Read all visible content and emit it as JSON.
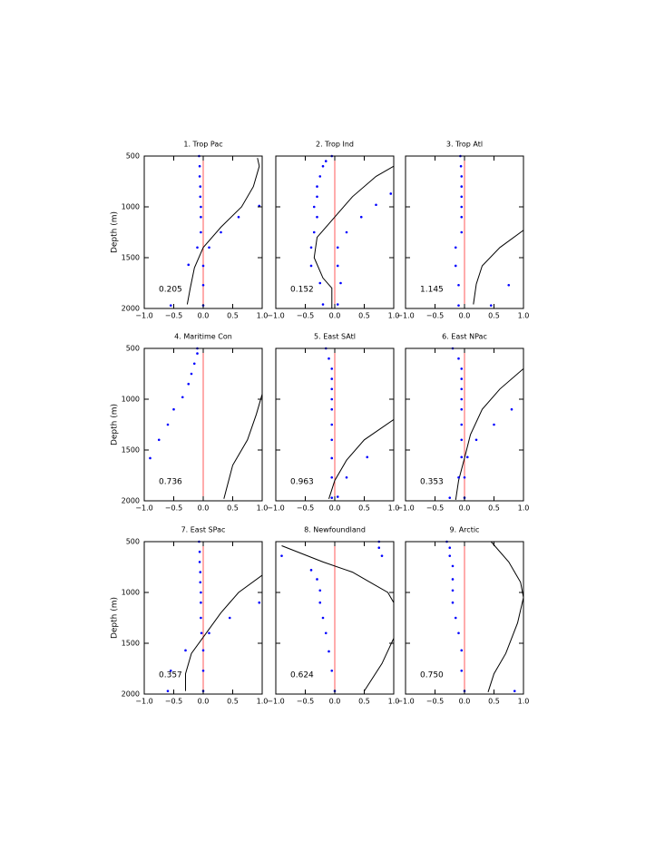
{
  "chart_data": [
    {
      "type": "profile",
      "title": "1. Trop Pac",
      "annotation": "0.205",
      "ylabel": "Depth (m)",
      "show_ytick_labels": true,
      "xlim": [
        -1,
        1
      ],
      "ylim": [
        500,
        2000
      ],
      "y_inverted": true,
      "xticks": [
        {
          "value": -1,
          "label": "−1.0"
        },
        {
          "value": -0.5,
          "label": "−0.5"
        },
        {
          "value": 0,
          "label": "0.0"
        },
        0.5,
        {
          "value": 1,
          "label": "1.0"
        }
      ],
      "yticks": [
        500,
        1000,
        1500,
        2000
      ],
      "reference_x": 0,
      "reference_color": "#ff5a5a",
      "series": [
        {
          "kind": "line",
          "color": "#000000",
          "x": [
            0.92,
            0.95,
            0.85,
            0.65,
            0.3,
            0.0,
            -0.15,
            -0.22,
            -0.27
          ],
          "y": [
            520,
            600,
            800,
            1000,
            1200,
            1400,
            1600,
            1800,
            1960
          ]
        },
        {
          "kind": "points",
          "color": "#0000ff",
          "x": [
            -0.07,
            -0.06,
            -0.06,
            -0.05,
            -0.05,
            -0.04,
            -0.04,
            -0.04,
            -0.1,
            0.1,
            0.0,
            -0.25,
            0.0,
            0.0,
            -0.55,
            0.6,
            0.3,
            0.95
          ],
          "y": [
            500,
            600,
            700,
            800,
            900,
            1000,
            1100,
            1250,
            1400,
            1400,
            1580,
            1570,
            1770,
            1970,
            1970,
            1100,
            1250,
            990
          ]
        }
      ]
    },
    {
      "type": "profile",
      "title": "2. Trop Ind",
      "annotation": "0.152",
      "show_ytick_labels": false,
      "xlim": [
        -1,
        1
      ],
      "ylim": [
        500,
        2000
      ],
      "y_inverted": true,
      "xticks": [
        {
          "value": -1,
          "label": "−1.0"
        },
        {
          "value": -0.5,
          "label": "−0.5"
        },
        {
          "value": 0,
          "label": "0.0"
        },
        0.5,
        {
          "value": 1,
          "label": "1.0"
        }
      ],
      "yticks": [
        500,
        1000,
        1500,
        2000
      ],
      "reference_x": 0,
      "reference_color": "#ff5a5a",
      "series": [
        {
          "kind": "line",
          "color": "#000000",
          "x": [
            1.0,
            0.7,
            0.3,
            0.0,
            -0.3,
            -0.35,
            -0.2,
            -0.05,
            -0.05
          ],
          "y": [
            600,
            700,
            900,
            1100,
            1300,
            1500,
            1700,
            1800,
            2000
          ]
        },
        {
          "kind": "points",
          "color": "#0000ff",
          "x": [
            -0.05,
            -0.15,
            -0.2,
            -0.25,
            -0.3,
            -0.3,
            -0.35,
            -0.3,
            -0.35,
            -0.4,
            -0.4,
            -0.25,
            -0.2,
            0.05,
            0.05,
            0.1,
            0.05,
            0.2,
            0.45,
            0.7,
            0.95
          ],
          "y": [
            500,
            550,
            600,
            700,
            800,
            900,
            1000,
            1100,
            1250,
            1400,
            1580,
            1750,
            1960,
            1400,
            1580,
            1750,
            1960,
            1250,
            1100,
            980,
            870
          ]
        }
      ]
    },
    {
      "type": "profile",
      "title": "3. Trop Atl",
      "annotation": "1.145",
      "show_ytick_labels": false,
      "xlim": [
        -1,
        1
      ],
      "ylim": [
        500,
        2000
      ],
      "y_inverted": true,
      "xticks": [
        {
          "value": -1,
          "label": "−1.0"
        },
        {
          "value": -0.5,
          "label": "−0.5"
        },
        {
          "value": 0,
          "label": "0.0"
        },
        0.5,
        {
          "value": 1,
          "label": "1.0"
        }
      ],
      "yticks": [
        500,
        1000,
        1500,
        2000
      ],
      "reference_x": 0,
      "reference_color": "#ff5a5a",
      "series": [
        {
          "kind": "line",
          "color": "#000000",
          "x": [
            1.0,
            0.6,
            0.3,
            0.2,
            0.15
          ],
          "y": [
            1230,
            1400,
            1580,
            1760,
            1960
          ]
        },
        {
          "kind": "points",
          "color": "#0000ff",
          "x": [
            -0.07,
            -0.06,
            -0.05,
            -0.05,
            -0.05,
            -0.05,
            -0.05,
            -0.05,
            -0.15,
            -0.15,
            -0.1,
            -0.1,
            0.45,
            0.75
          ],
          "y": [
            500,
            600,
            700,
            800,
            900,
            1000,
            1100,
            1250,
            1400,
            1580,
            1770,
            1970,
            1970,
            1770
          ]
        }
      ]
    },
    {
      "type": "profile",
      "title": "4. Maritime Con",
      "annotation": "0.736",
      "ylabel": "Depth (m)",
      "show_ytick_labels": true,
      "xlim": [
        -1,
        1
      ],
      "ylim": [
        500,
        2000
      ],
      "y_inverted": true,
      "xticks": [
        {
          "value": -1,
          "label": "−1.0"
        },
        {
          "value": -0.5,
          "label": "−0.5"
        },
        {
          "value": 0,
          "label": "0.0"
        },
        0.5,
        {
          "value": 1,
          "label": "1.0"
        }
      ],
      "yticks": [
        500,
        1000,
        1500,
        2000
      ],
      "reference_x": 0,
      "reference_color": "#ff5a5a",
      "series": [
        {
          "kind": "line",
          "color": "#000000",
          "x": [
            1.0,
            0.9,
            0.75,
            0.5,
            0.35
          ],
          "y": [
            950,
            1150,
            1400,
            1650,
            1980
          ]
        },
        {
          "kind": "points",
          "color": "#0000ff",
          "x": [
            -0.1,
            -0.1,
            -0.15,
            -0.2,
            -0.25,
            -0.35,
            -0.5,
            -0.6,
            -0.75,
            -0.9
          ],
          "y": [
            500,
            550,
            650,
            750,
            850,
            980,
            1100,
            1250,
            1400,
            1580
          ]
        }
      ]
    },
    {
      "type": "profile",
      "title": "5. East SAtl",
      "annotation": "0.963",
      "show_ytick_labels": false,
      "xlim": [
        -1,
        1
      ],
      "ylim": [
        500,
        2000
      ],
      "y_inverted": true,
      "xticks": [
        {
          "value": -1,
          "label": "−1.0"
        },
        {
          "value": -0.5,
          "label": "−0.5"
        },
        {
          "value": 0,
          "label": "0.0"
        },
        0.5,
        {
          "value": 1,
          "label": "1.0"
        }
      ],
      "yticks": [
        500,
        1000,
        1500,
        2000
      ],
      "reference_x": 0,
      "reference_color": "#ff5a5a",
      "series": [
        {
          "kind": "line",
          "color": "#000000",
          "x": [
            1.0,
            0.5,
            0.2,
            0.0,
            -0.1
          ],
          "y": [
            1200,
            1400,
            1600,
            1800,
            1980
          ]
        },
        {
          "kind": "points",
          "color": "#0000ff",
          "x": [
            -0.15,
            -0.1,
            -0.05,
            -0.05,
            -0.05,
            -0.05,
            -0.05,
            -0.05,
            -0.05,
            -0.05,
            -0.05,
            -0.05,
            0.55,
            0.2,
            0.05
          ],
          "y": [
            500,
            600,
            700,
            800,
            900,
            1000,
            1100,
            1250,
            1400,
            1580,
            1770,
            1970,
            1570,
            1770,
            1960
          ]
        }
      ]
    },
    {
      "type": "profile",
      "title": "6. East NPac",
      "annotation": "0.353",
      "show_ytick_labels": false,
      "xlim": [
        -1,
        1
      ],
      "ylim": [
        500,
        2000
      ],
      "y_inverted": true,
      "xticks": [
        {
          "value": -1,
          "label": "−1.0"
        },
        {
          "value": -0.5,
          "label": "−0.5"
        },
        {
          "value": 0,
          "label": "0.0"
        },
        0.5,
        {
          "value": 1,
          "label": "1.0"
        }
      ],
      "yticks": [
        500,
        1000,
        1500,
        2000
      ],
      "reference_x": 0,
      "reference_color": "#ff5a5a",
      "series": [
        {
          "kind": "line",
          "color": "#000000",
          "x": [
            1.0,
            0.6,
            0.3,
            0.1,
            0.0,
            -0.1,
            -0.15
          ],
          "y": [
            700,
            900,
            1100,
            1350,
            1580,
            1800,
            1990
          ]
        },
        {
          "kind": "points",
          "color": "#0000ff",
          "x": [
            -0.2,
            -0.1,
            -0.05,
            -0.05,
            -0.05,
            -0.05,
            -0.05,
            -0.05,
            -0.05,
            0.2,
            0.5,
            0.8,
            -0.05,
            0.05,
            -0.1,
            0.0,
            -0.25,
            0.0
          ],
          "y": [
            500,
            600,
            700,
            800,
            900,
            1000,
            1100,
            1250,
            1400,
            1400,
            1250,
            1100,
            1570,
            1570,
            1770,
            1770,
            1970,
            1970
          ]
        }
      ]
    },
    {
      "type": "profile",
      "title": "7. East SPac",
      "annotation": "0.357",
      "ylabel": "Depth (m)",
      "show_ytick_labels": true,
      "xlim": [
        -1,
        1
      ],
      "ylim": [
        500,
        2000
      ],
      "y_inverted": true,
      "xticks": [
        {
          "value": -1,
          "label": "−1.0"
        },
        {
          "value": -0.5,
          "label": "−0.5"
        },
        {
          "value": 0,
          "label": "0.0"
        },
        0.5,
        {
          "value": 1,
          "label": "1.0"
        }
      ],
      "yticks": [
        500,
        1000,
        1500,
        2000
      ],
      "reference_x": 0,
      "reference_color": "#ff5a5a",
      "series": [
        {
          "kind": "line",
          "color": "#000000",
          "x": [
            1.0,
            0.6,
            0.3,
            0.05,
            -0.2,
            -0.3,
            -0.3
          ],
          "y": [
            830,
            1000,
            1200,
            1400,
            1600,
            1800,
            1970
          ]
        },
        {
          "kind": "points",
          "color": "#0000ff",
          "x": [
            -0.07,
            -0.06,
            -0.06,
            -0.05,
            -0.05,
            -0.04,
            -0.04,
            -0.04,
            -0.03,
            0.95,
            0.45,
            0.1,
            -0.3,
            -0.55,
            -0.6,
            0.0,
            0.0,
            0.0
          ],
          "y": [
            500,
            600,
            700,
            800,
            900,
            1000,
            1100,
            1250,
            1400,
            1100,
            1250,
            1400,
            1570,
            1770,
            1970,
            1970,
            1770,
            1570
          ]
        }
      ]
    },
    {
      "type": "profile",
      "title": "8. Newfoundland",
      "annotation": "0.624",
      "show_ytick_labels": false,
      "xlim": [
        -1,
        1
      ],
      "ylim": [
        500,
        2000
      ],
      "y_inverted": true,
      "xticks": [
        {
          "value": -1,
          "label": "−1.0"
        },
        {
          "value": -0.5,
          "label": "−0.5"
        },
        {
          "value": 0,
          "label": "0.0"
        },
        0.5,
        {
          "value": 1,
          "label": "1.0"
        }
      ],
      "yticks": [
        500,
        1000,
        1500,
        2000
      ],
      "reference_x": 0,
      "reference_color": "#ff5a5a",
      "series": [
        {
          "kind": "line",
          "color": "#000000",
          "x": [
            -0.9,
            -0.2,
            0.3,
            0.6,
            0.9,
            1.0,
            null,
            1.0,
            0.8,
            0.5
          ],
          "y": [
            540,
            700,
            800,
            900,
            1000,
            1100,
            null,
            1450,
            1700,
            1970
          ]
        },
        {
          "kind": "points",
          "color": "#0000ff",
          "x": [
            0.75,
            0.75,
            0.8,
            -0.9,
            -0.4,
            -0.3,
            -0.25,
            -0.25,
            -0.2,
            -0.15,
            -0.1,
            -0.05,
            0.0
          ],
          "y": [
            500,
            560,
            640,
            640,
            780,
            870,
            980,
            1100,
            1250,
            1400,
            1580,
            1770,
            1970
          ]
        }
      ]
    },
    {
      "type": "profile",
      "title": "9. Arctic",
      "annotation": "0.750",
      "show_ytick_labels": false,
      "xlim": [
        -1,
        1
      ],
      "ylim": [
        500,
        2000
      ],
      "y_inverted": true,
      "xticks": [
        {
          "value": -1,
          "label": "−1.0"
        },
        {
          "value": -0.5,
          "label": "−0.5"
        },
        {
          "value": 0,
          "label": "0.0"
        },
        0.5,
        {
          "value": 1,
          "label": "1.0"
        }
      ],
      "yticks": [
        500,
        1000,
        1500,
        2000
      ],
      "reference_x": 0,
      "reference_color": "#ff5a5a",
      "series": [
        {
          "kind": "line",
          "color": "#000000",
          "x": [
            0.45,
            0.75,
            0.95,
            1.0,
            0.9,
            0.7,
            0.5,
            0.4
          ],
          "y": [
            500,
            700,
            900,
            1050,
            1300,
            1600,
            1800,
            1980
          ]
        },
        {
          "kind": "points",
          "color": "#0000ff",
          "x": [
            -0.3,
            -0.25,
            -0.25,
            -0.2,
            -0.2,
            -0.2,
            -0.2,
            -0.15,
            -0.1,
            -0.05,
            -0.05,
            0.0,
            0.85
          ],
          "y": [
            500,
            560,
            640,
            740,
            870,
            980,
            1100,
            1250,
            1400,
            1570,
            1770,
            1970,
            1970
          ]
        }
      ]
    }
  ]
}
